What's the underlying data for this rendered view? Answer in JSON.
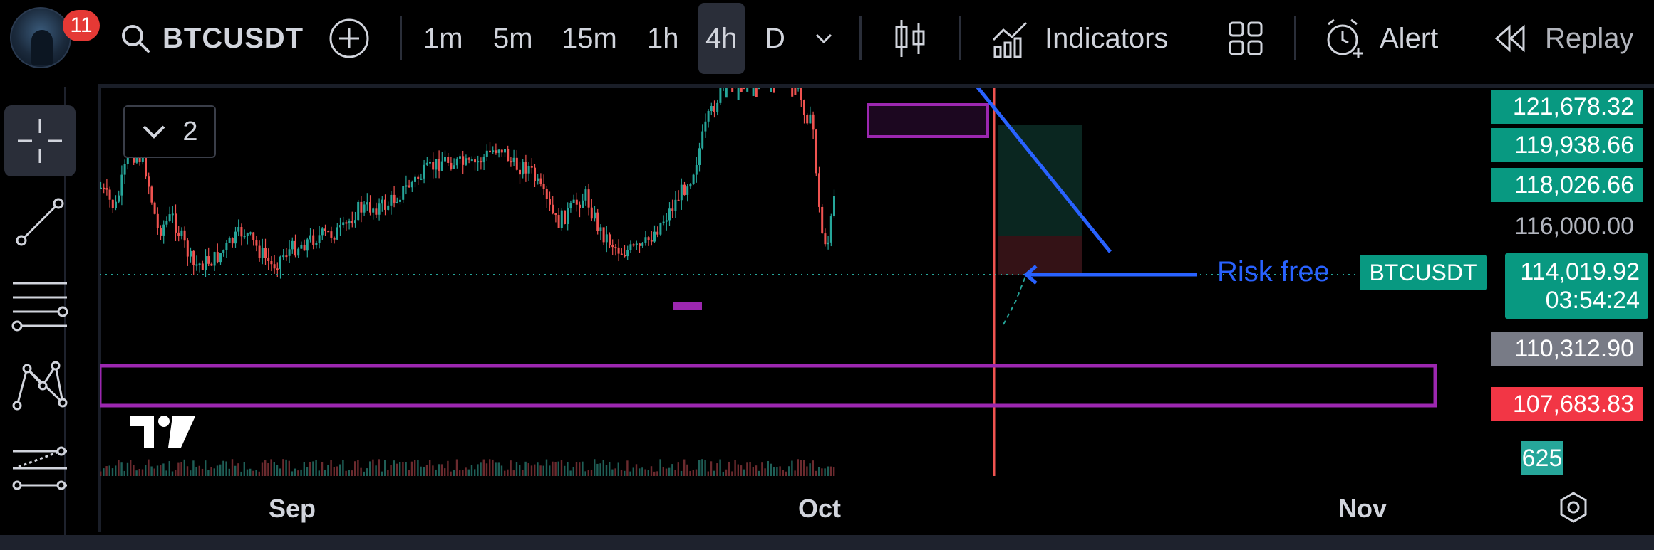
{
  "header": {
    "notification_count": "11",
    "symbol": "BTCUSDT",
    "timeframes": [
      "1m",
      "5m",
      "15m",
      "1h",
      "4h",
      "D"
    ],
    "active_timeframe": "4h",
    "indicators_label": "Indicators",
    "alert_label": "Alert",
    "replay_label": "Replay",
    "icons": [
      "search-icon",
      "add-symbol-icon",
      "chevron-down-icon",
      "candles-icon",
      "indicators-icon",
      "layout-icon",
      "alert-clock-icon",
      "replay-icon"
    ]
  },
  "left_tools": [
    "crosshair-icon",
    "trend-line-icon",
    "fib-retracement-icon",
    "pattern-icon",
    "prediction-icon"
  ],
  "chart": {
    "legend_count": "2",
    "annotation_text": "Risk free",
    "symbol_tag": "BTCUSDT",
    "last_price": "114,019.92",
    "countdown": "03:54:24",
    "price_labels": [
      {
        "text": "121,678.32",
        "color": "#089981"
      },
      {
        "text": "119,938.66",
        "color": "#089981"
      },
      {
        "text": "118,026.66",
        "color": "#089981"
      },
      {
        "text": "116,000.00",
        "color": "none"
      },
      {
        "text": "110,312.90",
        "color": "#787b86"
      },
      {
        "text": "107,683.83",
        "color": "#f23645"
      },
      {
        "text": "625",
        "color": "#26a69a"
      }
    ],
    "time_labels": [
      "Sep",
      "Oct",
      "Nov"
    ],
    "colors": {
      "up": "#26a69a",
      "down": "#ef5350",
      "zone": "#9c27b0",
      "trendline": "#2962ff",
      "position_profit": "#0b2a24",
      "position_loss": "#3a1418"
    },
    "price_range": [
      104000,
      123000
    ]
  }
}
